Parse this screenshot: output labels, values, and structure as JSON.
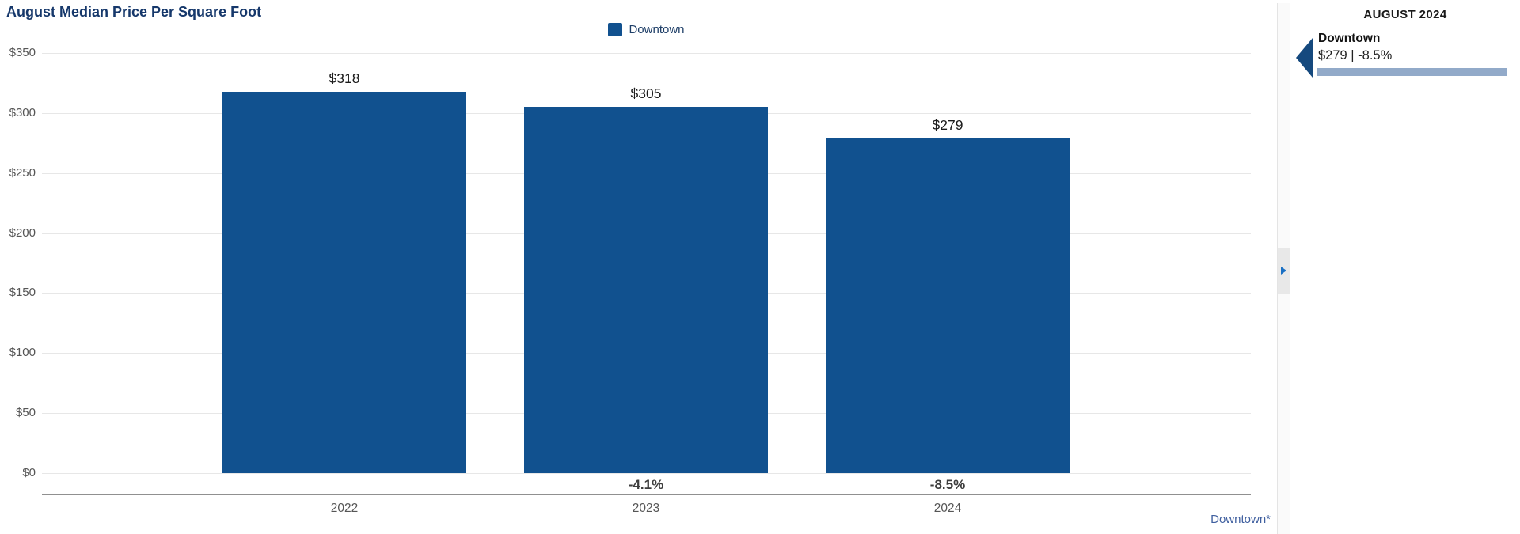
{
  "chart": {
    "title": "August Median Price Per Square Foot",
    "legend_label": "Downtown",
    "footnote_link": "Downtown*"
  },
  "chart_data": {
    "type": "bar",
    "title": "August Median Price Per Square Foot",
    "categories": [
      "2022",
      "2023",
      "2024"
    ],
    "series": [
      {
        "name": "Downtown",
        "values": [
          318,
          305,
          279
        ]
      }
    ],
    "value_labels": [
      "$318",
      "$305",
      "$279"
    ],
    "pct_change_labels": [
      "",
      "-4.1%",
      "-8.5%"
    ],
    "xlabel": "",
    "ylabel": "",
    "ylim": [
      0,
      350
    ],
    "yticks": [
      0,
      50,
      100,
      150,
      200,
      250,
      300,
      350
    ],
    "ytick_labels": [
      "$0",
      "$50",
      "$100",
      "$150",
      "$200",
      "$250",
      "$300",
      "$350"
    ],
    "grid": true,
    "legend_position": "top-center"
  },
  "panel": {
    "title": "AUGUST 2024",
    "item": {
      "name": "Downtown",
      "value_line": "$279 | -8.5%"
    }
  },
  "colors": {
    "bar": "#11518F",
    "navy_title": "#16386B",
    "legend_text": "#1F3F68",
    "panel_bar": "#92AAC9",
    "marker_triangle": "#15497E",
    "splitter_arrow": "#1A70C4",
    "link": "#3F5F9F"
  }
}
